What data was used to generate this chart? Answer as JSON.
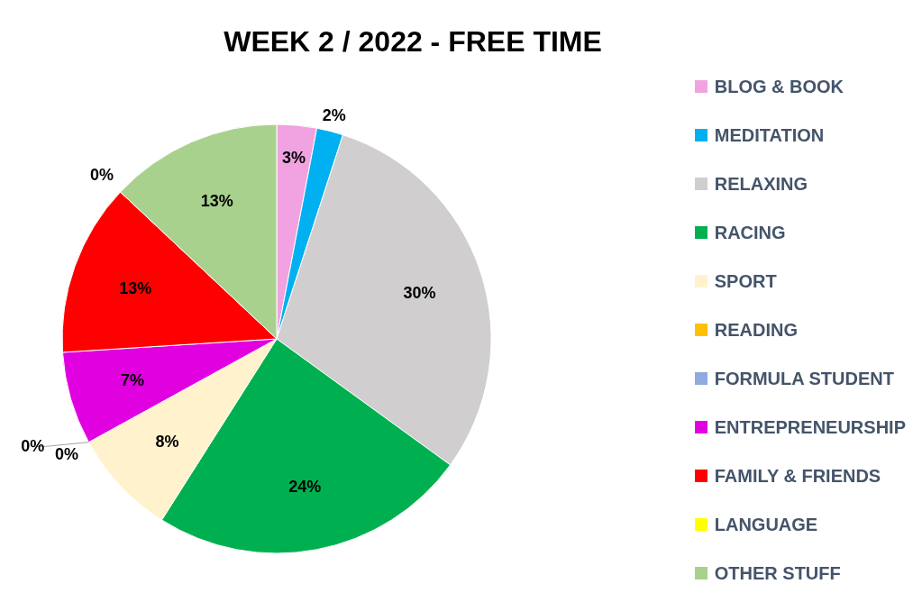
{
  "chart_data": {
    "type": "pie",
    "title": "WEEK 2 / 2022 - FREE TIME",
    "categories": [
      "BLOG & BOOK",
      "MEDITATION",
      "RELAXING",
      "RACING",
      "SPORT",
      "READING",
      "FORMULA STUDENT",
      "ENTREPRENEURSHIP",
      "FAMILY & FRIENDS",
      "LANGUAGE",
      "OTHER STUFF"
    ],
    "values": [
      3,
      2,
      30,
      24,
      8,
      0,
      0,
      7,
      13,
      0,
      13
    ],
    "colors": [
      "#f0a3e0",
      "#00b0f0",
      "#d0cece",
      "#00b050",
      "#fff2cc",
      "#ffc000",
      "#8faadc",
      "#e000e0",
      "#ff0000",
      "#ffff00",
      "#a9d18e"
    ],
    "value_labels": [
      "3%",
      "2%",
      "30%",
      "24%",
      "8%",
      "0%",
      "0%",
      "7%",
      "13%",
      "0%",
      "13%"
    ],
    "legend": "right"
  }
}
